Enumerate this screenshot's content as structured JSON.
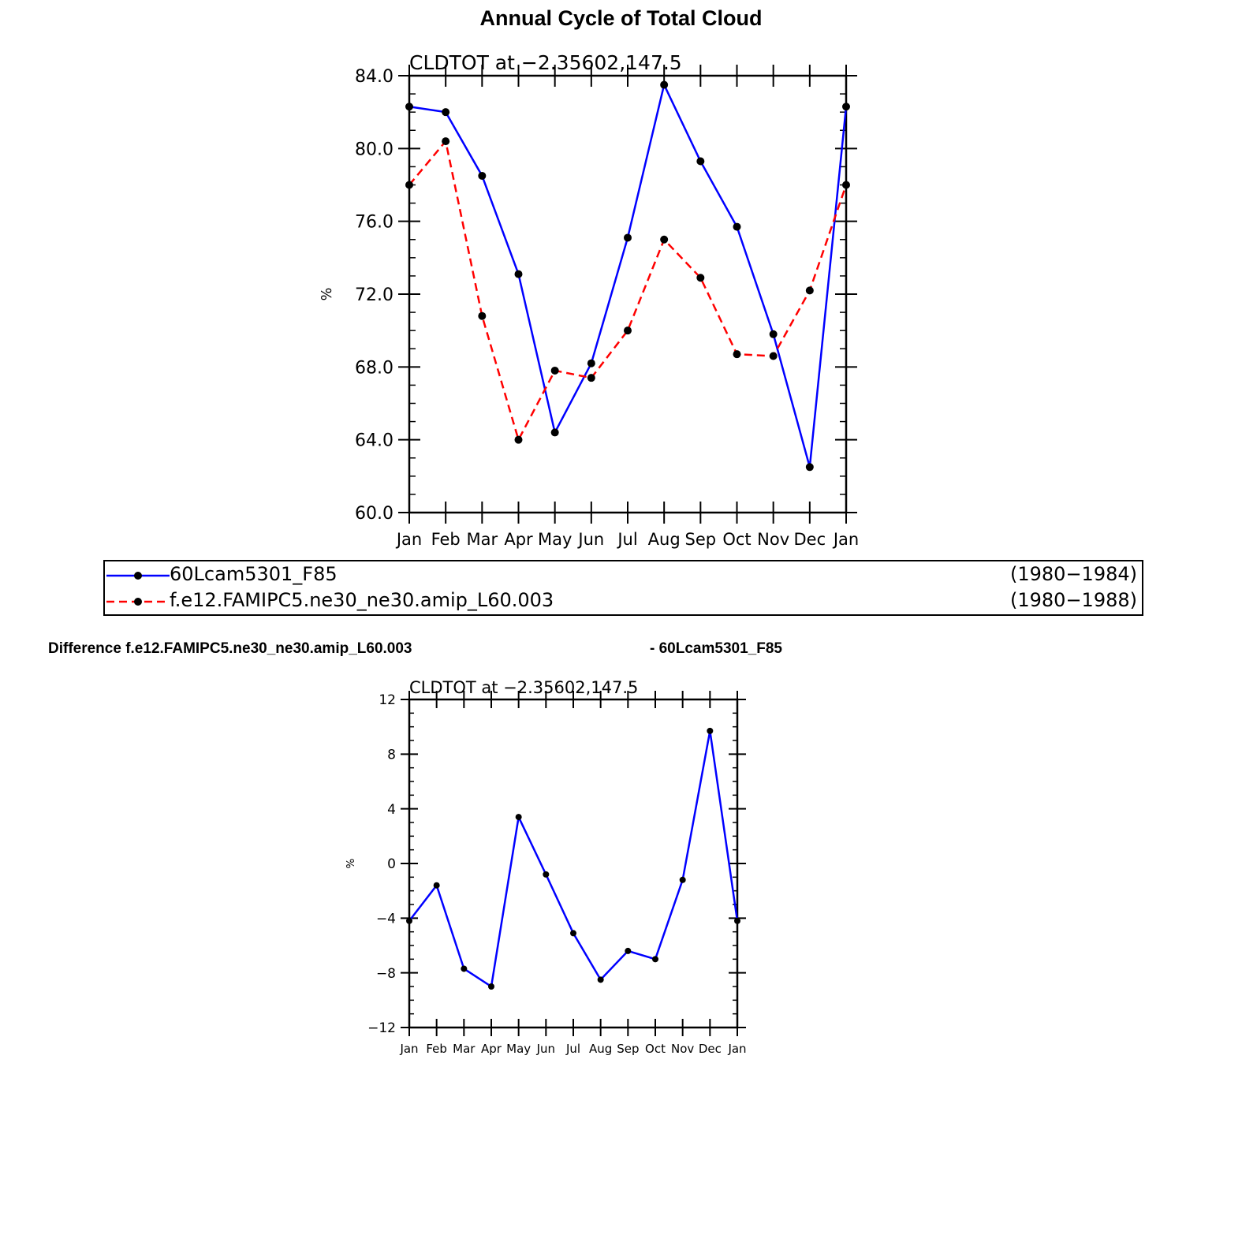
{
  "titles": {
    "main": "Annual Cycle of Total Cloud",
    "diff_left": "Difference f.e12.FAMIPC5.ne30_ne30.amip_L60.003",
    "diff_right": "- 60Lcam5301_F85"
  },
  "legend": [
    {
      "name": "60Lcam5301_F85",
      "years": "(1980−1984)",
      "color": "#0000ff",
      "dash": "solid"
    },
    {
      "name": "f.e12.FAMIPC5.ne30_ne30.amip_L60.003",
      "years": "(1980−1988)",
      "color": "#ff0000",
      "dash": "dashed"
    }
  ],
  "chart_data": [
    {
      "type": "line",
      "subtitle": "CLDTOT at −2.35602,147.5",
      "ylabel": "%",
      "categories": [
        "Jan",
        "Feb",
        "Mar",
        "Apr",
        "May",
        "Jun",
        "Jul",
        "Aug",
        "Sep",
        "Oct",
        "Nov",
        "Dec",
        "Jan"
      ],
      "ylim": [
        60,
        84
      ],
      "yticks": [
        "60.0",
        "64.0",
        "68.0",
        "72.0",
        "76.0",
        "80.0",
        "84.0"
      ],
      "series": [
        {
          "name": "60Lcam5301_F85",
          "color": "#0000ff",
          "dash": "solid",
          "values": [
            82.3,
            82.0,
            78.5,
            73.1,
            64.4,
            68.2,
            75.1,
            83.5,
            79.3,
            75.7,
            69.8,
            62.5,
            82.3
          ]
        },
        {
          "name": "f.e12.FAMIPC5.ne30_ne30.amip_L60.003",
          "color": "#ff0000",
          "dash": "dashed",
          "values": [
            78.0,
            80.4,
            70.8,
            64.0,
            67.8,
            67.4,
            70.0,
            75.0,
            72.9,
            68.7,
            68.6,
            72.2,
            78.0
          ]
        }
      ]
    },
    {
      "type": "line",
      "subtitle": "CLDTOT at −2.35602,147.5",
      "ylabel": "%",
      "categories": [
        "Jan",
        "Feb",
        "Mar",
        "Apr",
        "May",
        "Jun",
        "Jul",
        "Aug",
        "Sep",
        "Oct",
        "Nov",
        "Dec",
        "Jan"
      ],
      "ylim": [
        -12,
        12
      ],
      "yticks": [
        "−12",
        "−8",
        "−4",
        "0",
        "4",
        "8",
        "12"
      ],
      "series": [
        {
          "color": "#0000ff",
          "dash": "solid",
          "values": [
            -4.2,
            -1.6,
            -7.7,
            -9.0,
            3.4,
            -0.8,
            -5.1,
            -8.5,
            -6.4,
            -7.0,
            -1.2,
            9.7,
            -4.2
          ]
        }
      ]
    }
  ]
}
